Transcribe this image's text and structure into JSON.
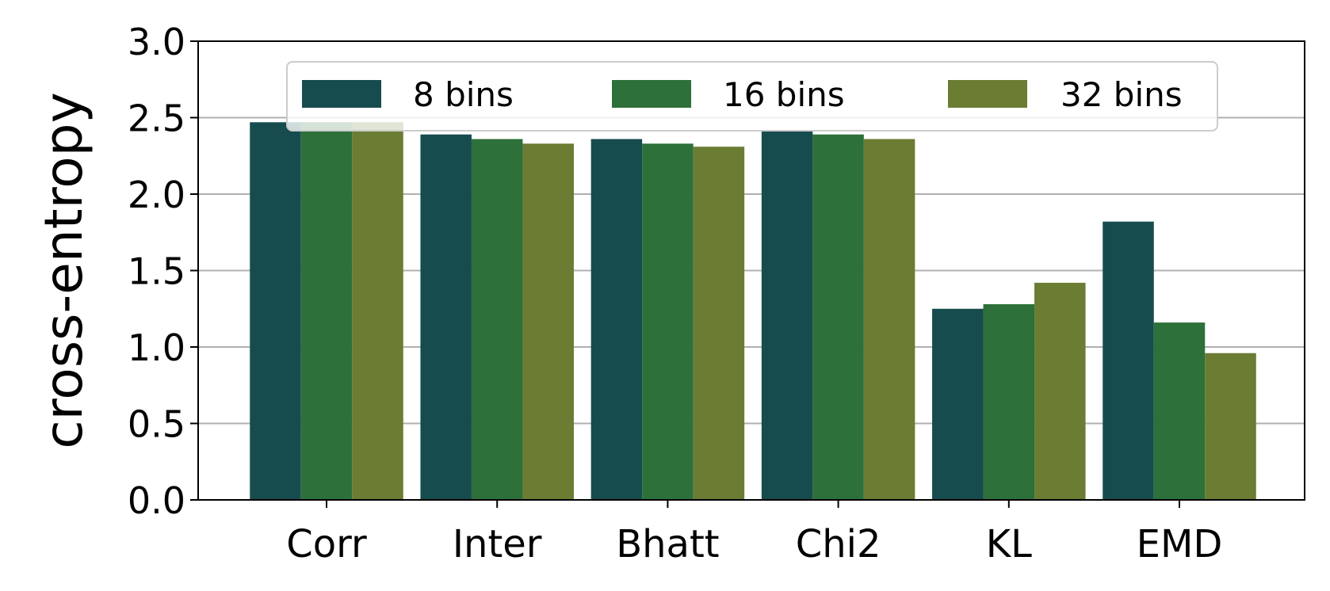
{
  "chart_data": {
    "type": "bar",
    "categories": [
      "Corr",
      "Inter",
      "Bhatt",
      "Chi2",
      "KL",
      "EMD"
    ],
    "series": [
      {
        "name": "8 bins",
        "color": "#174c4f",
        "values": [
          2.47,
          2.39,
          2.36,
          2.41,
          1.25,
          1.82
        ]
      },
      {
        "name": "16 bins",
        "color": "#2d703a",
        "values": [
          2.47,
          2.36,
          2.33,
          2.39,
          1.28,
          1.16
        ]
      },
      {
        "name": "32 bins",
        "color": "#6b7c33",
        "values": [
          2.47,
          2.33,
          2.31,
          2.36,
          1.42,
          0.96
        ]
      }
    ],
    "ylabel": "cross-entropy",
    "xlabel": "",
    "ylim": [
      0,
      3.0
    ],
    "yticks": [
      "0.0",
      "0.5",
      "1.0",
      "1.5",
      "2.0",
      "2.5",
      "3.0"
    ],
    "grid": "y",
    "legend_position": "top-center",
    "legend_columns": 3
  }
}
